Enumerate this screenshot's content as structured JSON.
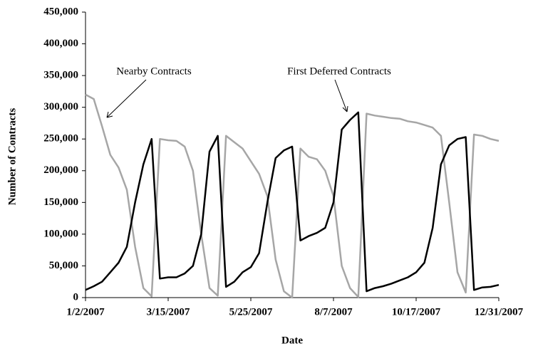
{
  "chart_data": {
    "type": "line",
    "x_label": "Date",
    "y_label": "Number of Contracts",
    "annotations": [
      "Nearby Contracts",
      "First Deferred Contracts"
    ],
    "categories": [
      "1/2/2007",
      null,
      null,
      null,
      null,
      null,
      null,
      null,
      null,
      null,
      "3/15/2007",
      null,
      null,
      null,
      null,
      null,
      null,
      null,
      null,
      null,
      "5/25/2007",
      null,
      null,
      null,
      null,
      null,
      null,
      null,
      null,
      null,
      "8/7/2007",
      null,
      null,
      null,
      null,
      null,
      null,
      null,
      null,
      null,
      "10/17/2007",
      null,
      null,
      null,
      null,
      null,
      null,
      null,
      null,
      null,
      "12/31/2007"
    ],
    "series": [
      {
        "color": "#a6a6a6",
        "values": [
          320000,
          313000,
          270000,
          225000,
          205000,
          170000,
          80000,
          15000,
          2000,
          250000,
          248000,
          247000,
          238000,
          200000,
          100000,
          15000,
          3000,
          255000,
          245000,
          235000,
          215000,
          195000,
          160000,
          60000,
          10000,
          0,
          235000,
          222000,
          218000,
          200000,
          160000,
          50000,
          15000,
          1000,
          290000,
          287000,
          285000,
          283000,
          282000,
          278000,
          276000,
          272000,
          268000,
          255000,
          150000,
          40000,
          8000,
          257000,
          255000,
          250000,
          247000
        ]
      },
      {
        "color": "#000000",
        "values": [
          12000,
          18000,
          25000,
          40000,
          55000,
          80000,
          150000,
          210000,
          250000,
          30000,
          32000,
          32000,
          38000,
          50000,
          100000,
          230000,
          255000,
          17000,
          25000,
          40000,
          48000,
          70000,
          150000,
          220000,
          232000,
          238000,
          90000,
          97000,
          102000,
          110000,
          150000,
          265000,
          280000,
          292000,
          10000,
          15000,
          18000,
          22000,
          27000,
          32000,
          40000,
          55000,
          110000,
          210000,
          240000,
          250000,
          253000,
          12000,
          16000,
          17000,
          20000
        ]
      }
    ],
    "ylim": [
      0,
      450000
    ],
    "yticks": [
      0,
      {
        "value": 50000,
        "label": "50,000"
      },
      {
        "value": 100000,
        "label": "100,000"
      },
      {
        "value": 150000,
        "label": "150,000"
      },
      {
        "value": 200000,
        "label": "200,000"
      },
      {
        "value": 250000,
        "label": "250,000"
      },
      {
        "value": 300000,
        "label": "300,000"
      },
      {
        "value": 350000,
        "label": "350,000"
      },
      {
        "value": 400000,
        "label": "400,000"
      },
      {
        "value": 450000,
        "label": "450,000"
      }
    ],
    "grid": false
  }
}
